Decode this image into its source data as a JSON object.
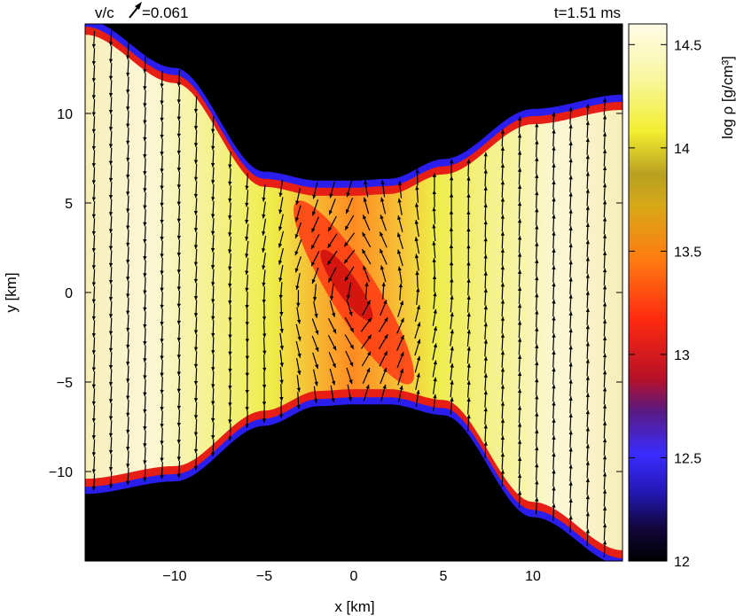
{
  "header": {
    "velocity_prefix": "v/c",
    "velocity_value": "=0.061",
    "time": "t=1.51 ms"
  },
  "chart_data": {
    "type": "heatmap",
    "title": "",
    "xlabel": "x [km]",
    "ylabel": "y [km]",
    "xlim": [
      -15,
      15
    ],
    "ylim": [
      -15,
      15
    ],
    "x_ticks": [
      -10,
      -5,
      0,
      5,
      10
    ],
    "x_tick_labels": [
      "−10",
      "−5",
      "0",
      "5",
      "10"
    ],
    "y_ticks": [
      10,
      5,
      0,
      -5,
      -10
    ],
    "y_tick_labels": [
      "10",
      "5",
      "0",
      "−5",
      "−10"
    ],
    "colorbar": {
      "label": "log ρ [g/cm³]",
      "range": [
        12,
        14.6
      ],
      "ticks": [
        14.5,
        14,
        13.5,
        13,
        12.5,
        12
      ],
      "tick_labels": [
        "14.5",
        "14",
        "13.5",
        "13",
        "12.5",
        "12"
      ],
      "colors": [
        "#000000",
        "#1a0aa0",
        "#3a2cff",
        "#c01020",
        "#ff3010",
        "#ff8a10",
        "#e8c814",
        "#f0f05a",
        "#fffbe0"
      ]
    },
    "density_boundary": {
      "x": [
        -15,
        -10,
        -5,
        -2,
        0,
        2,
        5,
        10,
        15
      ],
      "upper_y": [
        15,
        12.3,
        6.5,
        6.0,
        6.0,
        6.1,
        7.2,
        10.0,
        10.8
      ],
      "lower_y": [
        -11,
        -10.3,
        -7.2,
        -6.1,
        -6.0,
        -6.0,
        -6.6,
        -12.3,
        -15
      ]
    },
    "vector_field": {
      "quantity": "velocity v/c",
      "reference_vector": 0.061,
      "description_pattern": "mostly vertical flow, downward for x<0 and upward for x>0, shearing around a central vortex"
    }
  }
}
